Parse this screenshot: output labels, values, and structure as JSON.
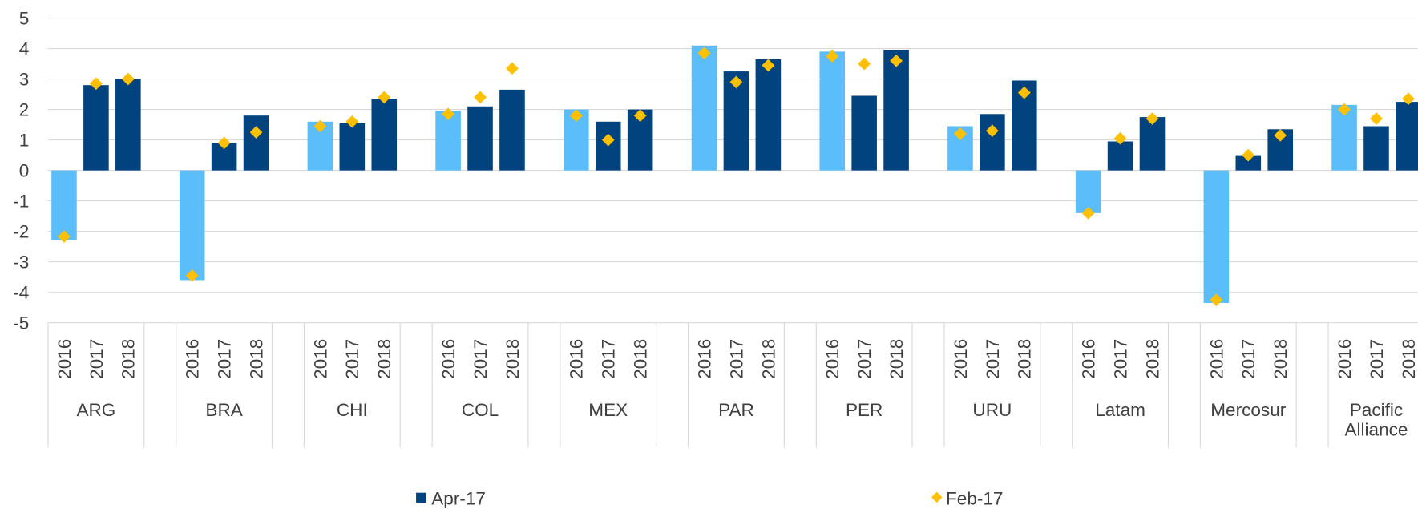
{
  "chart_data": {
    "type": "bar",
    "categories": [
      "2016",
      "2017",
      "2018",
      "2016",
      "2017",
      "2018",
      "2016",
      "2017",
      "2018",
      "2016",
      "2017",
      "2018",
      "2016",
      "2017",
      "2018",
      "2016",
      "2017",
      "2018",
      "2016",
      "2017",
      "2018",
      "2016",
      "2017",
      "2018",
      "2016",
      "2017",
      "2018",
      "2016",
      "2017",
      "2018",
      "2016",
      "2017",
      "2018"
    ],
    "groups": [
      "ARG",
      "BRA",
      "CHI",
      "COL",
      "MEX",
      "PAR",
      "PER",
      "URU",
      "Latam",
      "Mercosur",
      "Pacific Alliance"
    ],
    "series": [
      {
        "name": "Apr-17",
        "color": "#00437f",
        "point_colors": [
          "#5bbdf9",
          "#00437f",
          "#00437f",
          "#5bbdf9",
          "#00437f",
          "#00437f",
          "#5bbdf9",
          "#00437f",
          "#00437f",
          "#5bbdf9",
          "#00437f",
          "#00437f",
          "#5bbdf9",
          "#00437f",
          "#00437f",
          "#5bbdf9",
          "#00437f",
          "#00437f",
          "#5bbdf9",
          "#00437f",
          "#00437f",
          "#5bbdf9",
          "#00437f",
          "#00437f",
          "#5bbdf9",
          "#00437f",
          "#00437f",
          "#5bbdf9",
          "#00437f",
          "#00437f",
          "#5bbdf9",
          "#00437f",
          "#00437f"
        ],
        "values": [
          -2.3,
          2.8,
          3.0,
          -3.6,
          0.9,
          1.8,
          1.6,
          1.55,
          2.35,
          1.95,
          2.1,
          2.65,
          2.0,
          1.6,
          2.0,
          4.1,
          3.25,
          3.65,
          3.9,
          2.45,
          3.95,
          1.45,
          1.85,
          2.95,
          -1.4,
          0.95,
          1.75,
          -4.35,
          0.5,
          1.35,
          2.15,
          1.45,
          2.25
        ]
      },
      {
        "name": "Feb-17",
        "type": "scatter",
        "marker": "diamond",
        "color": "#ffc000",
        "values": [
          -2.17,
          2.85,
          3.0,
          -3.45,
          0.9,
          1.25,
          1.45,
          1.6,
          2.4,
          1.85,
          2.4,
          3.35,
          1.8,
          1.0,
          1.8,
          3.85,
          2.9,
          3.45,
          3.75,
          3.5,
          3.6,
          1.2,
          1.3,
          2.55,
          -1.4,
          1.05,
          1.7,
          -4.25,
          0.5,
          1.15,
          2.0,
          1.7,
          2.35
        ]
      }
    ],
    "ylim": [
      -5,
      5
    ],
    "yticks": [
      -5,
      -4,
      -3,
      -2,
      -1,
      0,
      1,
      2,
      3,
      4,
      5
    ],
    "grid": true,
    "legend": "bottom"
  }
}
